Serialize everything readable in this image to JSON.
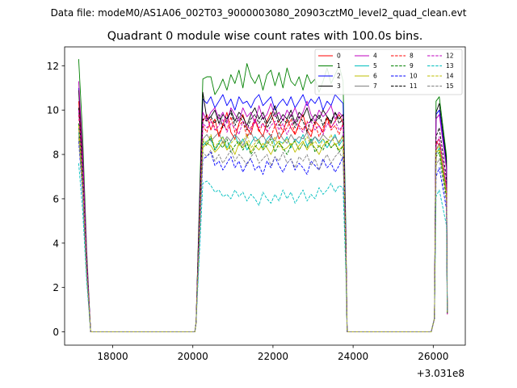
{
  "chart_data": {
    "type": "line",
    "suptitle": "Data file: modeM0/AS1A06_002T03_9000003080_20903cztM0_level2_quad_clean.evt",
    "title": "Quadrant 0 module wise count rates with 100.0s bins.",
    "xlabel": "",
    "ylabel": "",
    "offset_label": "+3.031e8",
    "xlim": [
      16800,
      26800
    ],
    "ylim": [
      -0.6,
      12.85
    ],
    "x_ticks": [
      18000,
      20000,
      22000,
      24000,
      26000
    ],
    "x_tick_labels": [
      "18000",
      "20000",
      "22000",
      "24000",
      "26000"
    ],
    "y_ticks": [
      0,
      2,
      4,
      6,
      8,
      10,
      12
    ],
    "y_tick_labels": [
      "0",
      "2",
      "4",
      "6",
      "8",
      "10",
      "12"
    ],
    "bin_width": 100,
    "segments": [
      {
        "start": 17250,
        "bins": 2
      },
      {
        "start": 20250,
        "bins": 36
      },
      {
        "start": 26050,
        "bins": 2
      }
    ],
    "edges": {
      "seg1_pre": 17150,
      "seg1_gap": 17450,
      "seg2_pre": 20050,
      "seg2_post": 23850,
      "seg3_pre": 25950,
      "seg3_post": 26350
    },
    "legend_position": "upper right",
    "series": [
      {
        "name": "0",
        "color": "#ff0000",
        "style": "solid",
        "first": 10.4,
        "values": [
          9.5,
          9.8,
          9.1,
          9.6,
          8.8,
          9.3,
          9.9,
          9.0,
          8.7,
          9.4,
          9.8,
          9.2,
          8.9,
          9.6,
          9.1,
          8.8,
          9.5,
          9.9,
          9.3,
          8.7,
          9.0,
          9.6,
          9.2,
          8.9,
          9.4,
          9.8,
          9.1,
          8.8,
          9.5,
          9.3,
          9.0,
          9.7,
          9.2,
          9.5,
          9.8,
          9.4
        ],
        "last": [
          8.6,
          8.4
        ]
      },
      {
        "name": "1",
        "color": "#008000",
        "style": "solid",
        "first": 12.3,
        "values": [
          11.4,
          11.5,
          11.5,
          10.7,
          11.0,
          11.4,
          10.9,
          11.6,
          11.2,
          11.8,
          11.0,
          12.1,
          11.5,
          11.2,
          11.6,
          10.9,
          11.6,
          11.8,
          11.1,
          11.7,
          11.0,
          11.9,
          11.3,
          11.1,
          11.5,
          10.9,
          11.6,
          11.2,
          11.4,
          10.8,
          11.3,
          11.9,
          11.2,
          11.6,
          12.0,
          11.3
        ],
        "last": [
          10.4,
          10.6
        ]
      },
      {
        "name": "2",
        "color": "#0000ff",
        "style": "solid",
        "first": 11.0,
        "values": [
          10.5,
          10.3,
          10.6,
          10.1,
          10.4,
          10.7,
          10.2,
          10.5,
          10.0,
          10.6,
          10.3,
          10.4,
          10.1,
          10.5,
          10.7,
          10.2,
          10.4,
          10.6,
          10.0,
          10.3,
          10.5,
          10.2,
          10.6,
          10.1,
          10.4,
          10.7,
          10.2,
          10.5,
          10.3,
          10.6,
          10.0,
          10.4,
          10.2,
          10.7,
          10.5,
          10.3
        ],
        "last": [
          9.8,
          10.0
        ]
      },
      {
        "name": "3",
        "color": "#000000",
        "style": "solid",
        "first": 10.9,
        "values": [
          10.8,
          9.6,
          9.7,
          10.0,
          9.4,
          9.8,
          9.6,
          10.0,
          9.5,
          9.9,
          9.7,
          9.3,
          9.8,
          10.1,
          9.6,
          9.9,
          9.4,
          9.7,
          10.2,
          9.5,
          9.8,
          9.6,
          10.0,
          9.4,
          9.9,
          9.7,
          10.1,
          9.5,
          9.8,
          9.6,
          10.0,
          9.7,
          9.4,
          9.9,
          9.6,
          9.8
        ],
        "last": [
          9.9,
          10.3
        ]
      },
      {
        "name": "4",
        "color": "#bf00bf",
        "style": "solid",
        "first": 11.3,
        "values": [
          9.9,
          9.5,
          9.9,
          10.1,
          9.6,
          9.9,
          9.4,
          10.1,
          9.8,
          9.5,
          10.1,
          9.7,
          9.9,
          9.4,
          10.2,
          9.6,
          9.8,
          10.3,
          9.7,
          9.9,
          9.5,
          10.0,
          9.7,
          10.1,
          9.6,
          9.9,
          10.4,
          9.8,
          9.5,
          10.0,
          9.7,
          9.9,
          10.2,
          9.6,
          9.9,
          9.7
        ],
        "last": [
          9.6,
          9.8
        ]
      },
      {
        "name": "5",
        "color": "#00bfbf",
        "style": "solid",
        "first": 9.0,
        "values": [
          8.4,
          8.6,
          8.7,
          8.2,
          8.5,
          8.8,
          8.3,
          8.6,
          8.9,
          8.4,
          8.7,
          8.2,
          8.5,
          8.8,
          8.6,
          8.3,
          8.7,
          8.9,
          8.4,
          8.6,
          8.5,
          8.8,
          8.3,
          8.7,
          8.5,
          8.9,
          8.4,
          8.6,
          8.8,
          8.5,
          8.7,
          8.3,
          8.6,
          8.9,
          8.4,
          8.7
        ],
        "last": [
          8.0,
          8.3
        ]
      },
      {
        "name": "6",
        "color": "#bfbf00",
        "style": "solid",
        "first": 8.8,
        "values": [
          8.3,
          8.5,
          8.4,
          8.1,
          8.3,
          8.6,
          8.2,
          8.4,
          8.0,
          8.5,
          8.3,
          8.6,
          8.1,
          8.4,
          8.2,
          8.5,
          8.3,
          8.0,
          8.4,
          8.6,
          8.2,
          8.3,
          8.5,
          8.1,
          8.4,
          8.6,
          8.2,
          8.5,
          8.3,
          8.0,
          8.4,
          8.6,
          8.3,
          8.5,
          8.2,
          8.4
        ],
        "last": [
          8.1,
          8.2
        ]
      },
      {
        "name": "7",
        "color": "#808080",
        "style": "solid",
        "first": 9.2,
        "values": [
          8.7,
          8.9,
          8.6,
          8.8,
          9.0,
          8.5,
          8.8,
          8.6,
          8.9,
          8.7,
          8.4,
          8.8,
          9.0,
          8.6,
          8.7,
          8.9,
          8.5,
          8.8,
          8.6,
          9.0,
          8.7,
          8.5,
          8.9,
          8.6,
          8.8,
          8.7,
          9.0,
          8.5,
          8.8,
          8.6,
          8.9,
          8.7,
          8.6,
          8.8,
          8.5,
          8.9
        ],
        "last": [
          8.2,
          8.5
        ]
      },
      {
        "name": "8",
        "color": "#ff0000",
        "style": "dashed",
        "first": 9.8,
        "values": [
          9.3,
          9.0,
          9.6,
          9.2,
          8.9,
          9.4,
          9.1,
          9.7,
          9.0,
          9.3,
          9.5,
          8.8,
          9.2,
          9.6,
          9.0,
          9.4,
          9.1,
          8.8,
          9.3,
          9.5,
          9.0,
          9.2,
          9.6,
          8.9,
          9.3,
          9.1,
          9.5,
          9.0,
          9.4,
          8.8,
          9.2,
          9.6,
          9.1,
          9.3,
          8.9,
          9.4
        ],
        "last": [
          8.5,
          8.7
        ]
      },
      {
        "name": "9",
        "color": "#008000",
        "style": "dashed",
        "first": 9.4,
        "values": [
          8.6,
          8.4,
          8.8,
          8.2,
          8.5,
          8.3,
          8.7,
          8.1,
          8.4,
          8.6,
          8.2,
          8.5,
          8.0,
          8.3,
          8.6,
          8.2,
          8.4,
          8.7,
          8.1,
          8.5,
          8.3,
          8.0,
          8.4,
          8.6,
          8.2,
          8.5,
          8.3,
          8.7,
          8.1,
          8.4,
          8.2,
          8.6,
          8.3,
          8.5,
          8.1,
          8.4
        ],
        "last": [
          7.9,
          8.1
        ]
      },
      {
        "name": "10",
        "color": "#0000ff",
        "style": "dashed",
        "first": 8.6,
        "values": [
          7.8,
          7.9,
          8.1,
          7.5,
          7.7,
          7.3,
          7.6,
          7.9,
          7.4,
          7.7,
          7.2,
          7.6,
          7.8,
          7.3,
          7.5,
          7.1,
          7.7,
          7.4,
          7.9,
          7.5,
          7.2,
          7.6,
          7.8,
          7.3,
          7.6,
          7.4,
          7.1,
          7.7,
          7.5,
          7.3,
          7.8,
          7.4,
          7.6,
          7.2,
          7.5,
          7.9
        ],
        "last": [
          7.0,
          7.4
        ]
      },
      {
        "name": "11",
        "color": "#000000",
        "style": "dashed",
        "first": 10.1,
        "values": [
          9.6,
          9.5,
          9.7,
          9.4,
          9.8,
          9.2,
          9.6,
          9.9,
          9.3,
          9.7,
          9.5,
          9.1,
          9.6,
          9.8,
          9.4,
          9.7,
          9.2,
          9.5,
          9.9,
          9.3,
          9.6,
          9.4,
          9.8,
          9.2,
          9.7,
          9.5,
          9.0,
          9.6,
          9.4,
          9.8,
          9.3,
          9.7,
          9.5,
          9.9,
          9.4,
          9.6
        ],
        "last": [
          8.8,
          9.2
        ]
      },
      {
        "name": "12",
        "color": "#bf00bf",
        "style": "dashed",
        "first": 10.0,
        "values": [
          9.4,
          9.2,
          9.5,
          9.1,
          9.3,
          9.6,
          9.0,
          9.4,
          9.2,
          8.9,
          9.5,
          9.3,
          9.1,
          9.6,
          9.2,
          9.4,
          9.0,
          9.3,
          9.5,
          9.1,
          9.4,
          8.9,
          9.3,
          9.6,
          9.2,
          9.0,
          9.4,
          9.5,
          9.1,
          9.3,
          8.9,
          9.4,
          9.2,
          9.5,
          9.1,
          9.3
        ],
        "last": [
          8.4,
          8.8
        ]
      },
      {
        "name": "13",
        "color": "#00bfbf",
        "style": "dashed",
        "first": 7.6,
        "values": [
          6.7,
          6.8,
          6.6,
          6.3,
          6.4,
          6.1,
          6.2,
          6.0,
          6.4,
          6.1,
          6.3,
          5.9,
          6.2,
          6.0,
          5.7,
          6.3,
          6.0,
          5.8,
          6.2,
          5.9,
          6.4,
          6.0,
          6.3,
          5.8,
          6.1,
          6.4,
          5.9,
          6.2,
          6.0,
          6.5,
          6.2,
          6.4,
          6.7,
          6.3,
          6.6,
          6.5
        ],
        "last": [
          6.1,
          6.4
        ]
      },
      {
        "name": "14",
        "color": "#bfbf00",
        "style": "dashed",
        "first": 9.3,
        "values": [
          8.7,
          8.5,
          8.9,
          8.3,
          8.6,
          8.8,
          8.2,
          8.5,
          8.7,
          8.4,
          8.6,
          8.9,
          8.3,
          8.5,
          8.7,
          8.2,
          8.6,
          8.4,
          8.8,
          8.3,
          8.5,
          8.7,
          8.4,
          8.6,
          8.2,
          8.5,
          8.8,
          8.4,
          8.6,
          8.3,
          8.7,
          8.5,
          8.9,
          8.4,
          8.6,
          8.8
        ],
        "last": [
          8.2,
          8.4
        ]
      },
      {
        "name": "15",
        "color": "#808080",
        "style": "dashed",
        "first": 8.8,
        "values": [
          8.1,
          7.9,
          8.2,
          7.7,
          8.0,
          7.6,
          7.9,
          8.2,
          7.7,
          8.0,
          7.8,
          7.5,
          7.9,
          8.1,
          7.6,
          7.8,
          8.0,
          7.5,
          7.9,
          7.7,
          8.1,
          7.6,
          7.8,
          7.4,
          7.9,
          7.7,
          8.0,
          7.5,
          7.8,
          7.3,
          7.7,
          8.0,
          7.6,
          7.9,
          8.1,
          7.8
        ],
        "last": [
          7.5,
          7.8
        ]
      }
    ]
  }
}
